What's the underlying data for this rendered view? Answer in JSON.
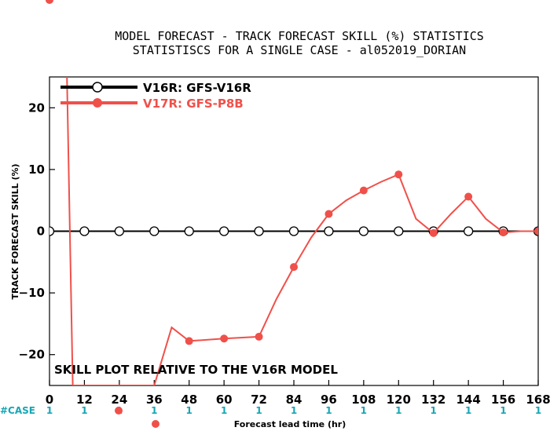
{
  "chart_data": {
    "type": "line",
    "title_line1": "MODEL FORECAST - TRACK FORECAST SKILL (%) STATISTICS",
    "title_line2": "STATISTISCS FOR A SINGLE CASE - al052019_DORIAN",
    "xlabel": "Forecast lead time (hr)",
    "ylabel": "TRACK FORECAST SKILL (%)",
    "xlim": [
      0,
      168
    ],
    "ylim": [
      -25,
      25
    ],
    "xticks": [
      0,
      12,
      24,
      36,
      48,
      60,
      72,
      84,
      96,
      108,
      120,
      132,
      144,
      156,
      168
    ],
    "yticks": [
      -20,
      -10,
      0,
      10,
      20
    ],
    "ytick_labels": [
      "−20",
      "−10",
      "0",
      "10",
      "20"
    ],
    "annotation": "SKILL PLOT RELATIVE TO THE V16R MODEL",
    "case_label": "#CASE",
    "case_counts": [
      "1",
      "1",
      "1",
      "1",
      "1",
      "1",
      "1",
      "1",
      "1",
      "1",
      "1",
      "1",
      "1",
      "1",
      "1"
    ],
    "legend_position": "top-left",
    "series": [
      {
        "name": "V16R: GFS-V16R",
        "color": "#000000",
        "marker": "open-circle",
        "x": [
          0,
          12,
          24,
          36,
          48,
          60,
          72,
          84,
          96,
          108,
          120,
          132,
          144,
          156,
          168
        ],
        "y": [
          0,
          0,
          0,
          0,
          0,
          0,
          0,
          0,
          0,
          0,
          0,
          0,
          0,
          0,
          0
        ]
      },
      {
        "name": "V17R: GFS-P8B",
        "color": "#f0504a",
        "marker": "filled-circle",
        "x": [
          6,
          8,
          36,
          42,
          48,
          60,
          72,
          78,
          84,
          90,
          96,
          102,
          108,
          114,
          120,
          126,
          132,
          138,
          144,
          150,
          156,
          162,
          168
        ],
        "y": [
          25,
          -25,
          -25,
          -15.6,
          -17.8,
          -17.4,
          -17.1,
          -11,
          -5.8,
          -1,
          2.8,
          5,
          6.6,
          8,
          9.2,
          2,
          -0.3,
          2.8,
          5.6,
          2,
          -0.2,
          0,
          0
        ],
        "marked_x": [
          48,
          60,
          72,
          84,
          96,
          108,
          120,
          132,
          144,
          156,
          168
        ]
      }
    ]
  }
}
